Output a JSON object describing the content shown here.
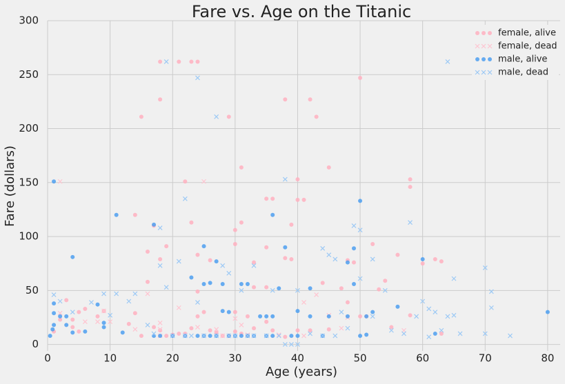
{
  "chart_data": {
    "type": "scatter",
    "title": "Fare vs. Age on the Titanic",
    "x_label": "Age (years)",
    "y_label": "Fare (dollars)",
    "xlim": [
      0,
      82
    ],
    "ylim": [
      -6,
      300
    ],
    "xticks": [
      0,
      10,
      20,
      30,
      40,
      50,
      60,
      70,
      80
    ],
    "yticks": [
      0,
      50,
      100,
      150,
      200,
      250,
      300
    ],
    "grid": true,
    "legend": "upper right",
    "series": [
      {
        "name": "female, alive",
        "color": "#ffb0c0",
        "marker": "o",
        "x": [
          18,
          21,
          23,
          24,
          18,
          42,
          38,
          15,
          29,
          43,
          50,
          31,
          45,
          22,
          58,
          58,
          40,
          35,
          36,
          40,
          41,
          14,
          23,
          31,
          17,
          39,
          30,
          52,
          30,
          19,
          48,
          16,
          18,
          16,
          24,
          35,
          38,
          33,
          39,
          26,
          44,
          47,
          54,
          49,
          53,
          62,
          63,
          56,
          60,
          35,
          33,
          24,
          25,
          30,
          32,
          2,
          3,
          4,
          5,
          6,
          8,
          9,
          13,
          14,
          15,
          17,
          18,
          19,
          20,
          21,
          22,
          23,
          24,
          26,
          27,
          28,
          29,
          31,
          33,
          35,
          36,
          38,
          40,
          42,
          45,
          48,
          50,
          51,
          55,
          58,
          63,
          30,
          1,
          4,
          5
        ],
        "y": [
          262,
          262,
          262,
          262,
          227,
          227,
          227,
          211,
          211,
          211,
          247,
          164,
          164,
          151,
          153,
          146,
          153,
          135,
          135,
          134,
          134,
          120,
          113,
          113,
          110,
          111,
          106,
          93,
          93,
          91,
          78,
          86,
          79,
          58,
          83,
          90,
          80,
          76,
          79,
          78,
          57,
          52,
          59,
          76,
          51,
          79,
          77,
          83,
          75,
          53,
          53,
          49,
          30,
          30,
          26,
          23,
          41,
          23,
          30,
          33,
          26,
          31,
          19,
          29,
          8,
          16,
          13,
          8,
          9,
          10,
          10,
          15,
          26,
          13,
          11,
          8,
          8,
          10,
          15,
          21,
          13,
          7,
          13,
          13,
          14,
          39,
          26,
          26,
          16,
          27,
          10,
          12,
          12,
          16,
          12
        ]
      },
      {
        "name": "female, dead",
        "color": "#ffc4d0",
        "marker": "x",
        "x": [
          2,
          25,
          16,
          18,
          9,
          10,
          14,
          18,
          21,
          22,
          25,
          28,
          30,
          31,
          32,
          41,
          43,
          45,
          37,
          8,
          2,
          47,
          57,
          48,
          24,
          27,
          30,
          18,
          41,
          6
        ],
        "y": [
          151,
          151,
          47,
          20,
          31,
          21,
          14,
          14,
          34,
          9,
          8,
          8,
          8,
          18,
          9,
          39,
          46,
          27,
          9,
          21,
          29,
          15,
          13,
          25,
          16,
          14,
          24,
          8,
          8,
          21
        ]
      },
      {
        "name": "male, alive",
        "color": "#4d9ff0",
        "marker": "o",
        "x": [
          80,
          1,
          11,
          17,
          36,
          50,
          38,
          49,
          25,
          4,
          27,
          42,
          48,
          28,
          25,
          26,
          31,
          32,
          36,
          37,
          40,
          49,
          51,
          52,
          56,
          60,
          62,
          0.4,
          0.8,
          1,
          1,
          1,
          2,
          3,
          3,
          4,
          6,
          8,
          9,
          9,
          12,
          17,
          18,
          20,
          22,
          24,
          25,
          26,
          27,
          28,
          29,
          30,
          31,
          32,
          33,
          34,
          35,
          36,
          39,
          40,
          42,
          44,
          45,
          48,
          50,
          51,
          23,
          29,
          35
        ],
        "y": [
          30,
          151,
          120,
          111,
          120,
          133,
          90,
          89,
          91,
          81,
          77,
          52,
          76,
          56,
          56,
          57,
          56,
          56,
          26,
          52,
          31,
          56,
          26,
          30,
          35,
          79,
          10,
          8,
          14,
          18,
          38,
          29,
          26,
          26,
          18,
          11,
          12,
          37,
          20,
          16,
          11,
          8,
          8,
          8,
          8,
          8,
          8,
          8,
          8,
          31,
          8,
          8,
          8,
          8,
          8,
          26,
          8,
          8,
          8,
          8,
          26,
          8,
          26,
          26,
          8,
          9,
          62,
          30,
          26
        ]
      },
      {
        "name": "male, dead",
        "color": "#9cc9f5",
        "marker": "x",
        "x": [
          64,
          19,
          24,
          27,
          38,
          22,
          49,
          50,
          58,
          18,
          70,
          71,
          65,
          44,
          46,
          52,
          28,
          33,
          18,
          1,
          11,
          14,
          19,
          21,
          24,
          29,
          31,
          36,
          40,
          45,
          50,
          54,
          71,
          70,
          74,
          66,
          61,
          64,
          65,
          2,
          4,
          7,
          9,
          10,
          13,
          16,
          17,
          20,
          22,
          23,
          25,
          27,
          29,
          30,
          32,
          33,
          35,
          37,
          38,
          39,
          40,
          42,
          44,
          46,
          47,
          48,
          52,
          55,
          57,
          59,
          60,
          62,
          63,
          61
        ],
        "y": [
          262,
          262,
          247,
          211,
          153,
          135,
          110,
          106,
          113,
          108,
          71,
          49,
          61,
          89,
          79,
          79,
          73,
          73,
          73,
          46,
          47,
          47,
          53,
          77,
          39,
          66,
          50,
          50,
          50,
          83,
          61,
          50,
          34,
          10,
          8,
          10,
          7,
          26,
          27,
          40,
          30,
          39,
          47,
          27,
          40,
          18,
          10,
          8,
          8,
          8,
          8,
          8,
          8,
          8,
          8,
          8,
          8,
          8,
          0,
          0,
          0,
          10,
          8,
          8,
          30,
          15,
          26,
          13,
          10,
          26,
          40,
          30,
          13,
          33
        ]
      }
    ]
  }
}
